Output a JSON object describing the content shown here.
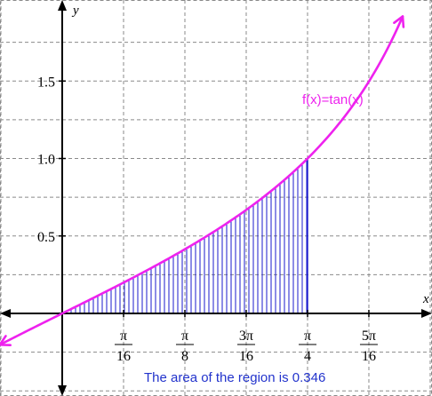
{
  "chart_data": {
    "type": "area",
    "function": {
      "label": "f(x)=tan(x)",
      "color": "#ee22ee",
      "samples": [
        {
          "x": -0.2,
          "y": -0.203
        },
        {
          "x": 0.0,
          "y": 0.0
        },
        {
          "x": 0.19635,
          "y": 0.199
        },
        {
          "x": 0.3927,
          "y": 0.414
        },
        {
          "x": 0.589,
          "y": 0.668
        },
        {
          "x": 0.7854,
          "y": 1.0
        },
        {
          "x": 1.0,
          "y": 1.557
        },
        {
          "x": 1.09,
          "y": 1.921
        }
      ]
    },
    "region": {
      "x_from": 0,
      "x_to": 0.7854,
      "fill_style": "vertical hatching",
      "color": "#1a1acc",
      "area": 0.346
    },
    "x_axis": {
      "label": "x",
      "range": [
        -0.2,
        1.29
      ],
      "ticks": [
        {
          "value": 0.19635,
          "num": "π",
          "den": "16"
        },
        {
          "value": 0.3927,
          "num": "π",
          "den": "8"
        },
        {
          "value": 0.589,
          "num": "3π",
          "den": "16"
        },
        {
          "value": 0.7854,
          "num": "π",
          "den": "4"
        },
        {
          "value": 0.9817,
          "num": "5π",
          "den": "16"
        }
      ]
    },
    "y_axis": {
      "label": "y",
      "range": [
        -0.51,
        1.98
      ],
      "ticks": [
        {
          "value": 0.5,
          "label": "0.5"
        },
        {
          "value": 1.0,
          "label": "1.0"
        },
        {
          "value": 1.5,
          "label": "1.5"
        }
      ]
    },
    "grid": true,
    "annotation": "The area of the region is 0.346",
    "annotation_color": "#2233cc"
  }
}
